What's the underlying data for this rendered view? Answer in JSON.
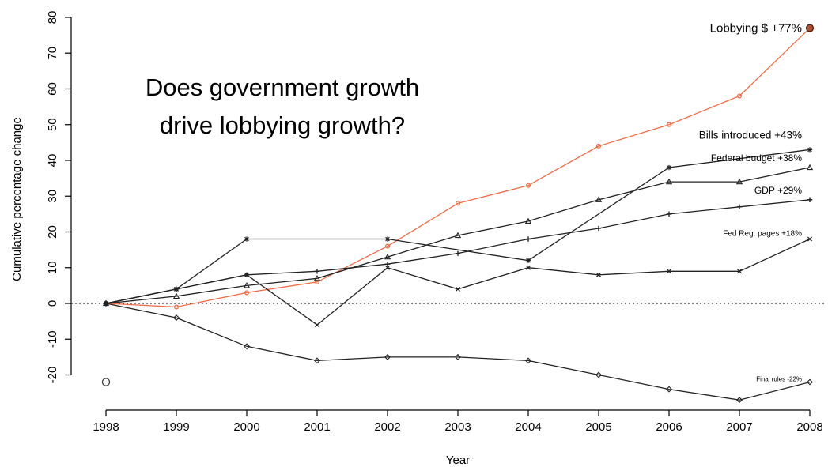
{
  "chart_data": {
    "type": "line",
    "title": "Does government growth drive lobbying growth?",
    "title_lines": [
      "Does government growth",
      "drive lobbying growth?"
    ],
    "xlabel": "Year",
    "ylabel": "Cumulative percentage change",
    "x": [
      1998,
      1999,
      2000,
      2001,
      2002,
      2003,
      2004,
      2005,
      2006,
      2007,
      2008
    ],
    "ylim": [
      -25,
      80
    ],
    "yticks": [
      -20,
      -10,
      0,
      10,
      20,
      30,
      40,
      50,
      60,
      70,
      80
    ],
    "zero_line": "dotted",
    "grid": false,
    "legend": "none (direct labels at right end)",
    "series": [
      {
        "name": "Lobbying $ +77%",
        "color": "#f26b43",
        "marker": "circle",
        "values": [
          0,
          -1,
          3,
          6,
          16,
          28,
          33,
          44,
          50,
          58,
          77
        ]
      },
      {
        "name": "Bills introduced +43%",
        "color": "#222222",
        "marker": "asterisk",
        "values": [
          0,
          4,
          18,
          null,
          18,
          null,
          12,
          null,
          38,
          null,
          43
        ]
      },
      {
        "name": "Federal budget +38%",
        "color": "#222222",
        "marker": "triangle",
        "values": [
          0,
          2,
          5,
          7,
          13,
          19,
          23,
          29,
          34,
          34,
          38
        ]
      },
      {
        "name": "GDP +29%",
        "color": "#222222",
        "marker": "plus",
        "values": [
          0,
          4,
          8,
          9,
          11,
          14,
          18,
          21,
          25,
          27,
          29
        ]
      },
      {
        "name": "Fed Reg. pages +18%",
        "color": "#222222",
        "marker": "cross",
        "values": [
          0,
          4,
          8,
          -6,
          10,
          4,
          10,
          8,
          9,
          9,
          18
        ]
      },
      {
        "name": "Final rules -22%",
        "color": "#222222",
        "marker": "diamond",
        "values": [
          0,
          -4,
          -12,
          -16,
          -15,
          -15,
          -16,
          -20,
          -24,
          -27,
          -22
        ]
      }
    ],
    "outlier_point": {
      "x": 1998,
      "y": -22,
      "marker": "open-circle"
    }
  },
  "colors": {
    "accent": "#f26b43",
    "series": "#222222",
    "axis": "#000000"
  }
}
